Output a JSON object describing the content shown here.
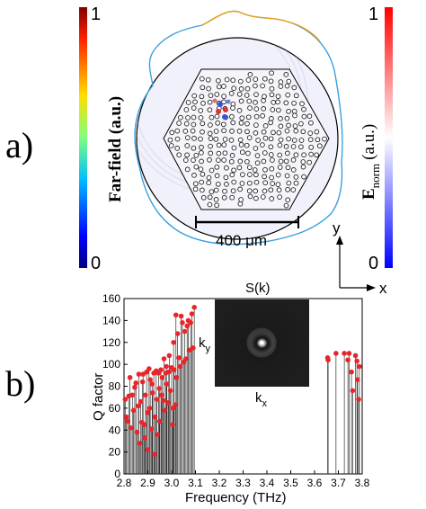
{
  "panel_a": {
    "label": "a)",
    "left_colorbar": {
      "title": "Far-field (a.u.)",
      "max_label": "1",
      "min_label": "0"
    },
    "right_colorbar": {
      "title_main": "E",
      "title_sub": "norm",
      "title_unit": "(a.u.)",
      "max_label": "1",
      "min_label": "0"
    },
    "scale_bar_label": "400 μm",
    "axis_y_label": "y",
    "axis_x_label": "x"
  },
  "panel_b": {
    "label": "b)",
    "inset": {
      "title": "S(k)",
      "ky_label": "k",
      "ky_sub": "y",
      "kx_label": "k",
      "kx_sub": "x"
    }
  },
  "colors": {
    "marker": "#e8262a",
    "stem": "#333333",
    "frame": "#000000"
  },
  "chart_data": {
    "type": "scatter",
    "xlabel": "Frequency (THz)",
    "ylabel": "Q factor",
    "xlim": [
      2.8,
      3.8
    ],
    "ylim": [
      0,
      160
    ],
    "xticks": [
      "2.8",
      "2.9",
      "3.0",
      "3.1",
      "3.2",
      "3.3",
      "3.4",
      "3.5",
      "3.6",
      "3.7",
      "3.8"
    ],
    "yticks": [
      "0",
      "20",
      "40",
      "60",
      "80",
      "100",
      "120",
      "140",
      "160"
    ],
    "grid": false,
    "points": [
      [
        2.805,
        68
      ],
      [
        2.81,
        52
      ],
      [
        2.815,
        48
      ],
      [
        2.82,
        71
      ],
      [
        2.825,
        88
      ],
      [
        2.83,
        42
      ],
      [
        2.835,
        72
      ],
      [
        2.84,
        58
      ],
      [
        2.845,
        79
      ],
      [
        2.85,
        83
      ],
      [
        2.855,
        38
      ],
      [
        2.86,
        62
      ],
      [
        2.862,
        91
      ],
      [
        2.865,
        28
      ],
      [
        2.87,
        66
      ],
      [
        2.875,
        47
      ],
      [
        2.878,
        84
      ],
      [
        2.88,
        91
      ],
      [
        2.885,
        45
      ],
      [
        2.888,
        33
      ],
      [
        2.89,
        72
      ],
      [
        2.895,
        93
      ],
      [
        2.898,
        56
      ],
      [
        2.9,
        22
      ],
      [
        2.905,
        96
      ],
      [
        2.908,
        60
      ],
      [
        2.91,
        86
      ],
      [
        2.915,
        41
      ],
      [
        2.918,
        82
      ],
      [
        2.92,
        74
      ],
      [
        2.925,
        92
      ],
      [
        2.928,
        18
      ],
      [
        2.93,
        52
      ],
      [
        2.935,
        94
      ],
      [
        2.938,
        68
      ],
      [
        2.94,
        36
      ],
      [
        2.945,
        92
      ],
      [
        2.948,
        78
      ],
      [
        2.95,
        48
      ],
      [
        2.955,
        95
      ],
      [
        2.958,
        72
      ],
      [
        2.96,
        88
      ],
      [
        2.965,
        67
      ],
      [
        2.968,
        105
      ],
      [
        2.97,
        58
      ],
      [
        2.975,
        92
      ],
      [
        2.978,
        98
      ],
      [
        2.98,
        82
      ],
      [
        2.985,
        65
      ],
      [
        2.988,
        93
      ],
      [
        2.99,
        108
      ],
      [
        2.995,
        76
      ],
      [
        3.0,
        97
      ],
      [
        3.003,
        45
      ],
      [
        3.005,
        60
      ],
      [
        3.008,
        120
      ],
      [
        3.01,
        95
      ],
      [
        3.015,
        63
      ],
      [
        3.018,
        145
      ],
      [
        3.02,
        88
      ],
      [
        3.025,
        128
      ],
      [
        3.03,
        106
      ],
      [
        3.035,
        98
      ],
      [
        3.04,
        144
      ],
      [
        3.045,
        138
      ],
      [
        3.05,
        102
      ],
      [
        3.055,
        130
      ],
      [
        3.06,
        105
      ],
      [
        3.065,
        135
      ],
      [
        3.07,
        140
      ],
      [
        3.075,
        113
      ],
      [
        3.08,
        138
      ],
      [
        3.085,
        146
      ],
      [
        3.09,
        115
      ],
      [
        3.095,
        152
      ],
      [
        3.655,
        106
      ],
      [
        3.657,
        104
      ],
      [
        3.69,
        110
      ],
      [
        3.725,
        110
      ],
      [
        3.74,
        104
      ],
      [
        3.745,
        110
      ],
      [
        3.755,
        93
      ],
      [
        3.76,
        76
      ],
      [
        3.772,
        108
      ],
      [
        3.778,
        103
      ],
      [
        3.78,
        86
      ],
      [
        3.785,
        68
      ],
      [
        3.788,
        98
      ]
    ]
  }
}
